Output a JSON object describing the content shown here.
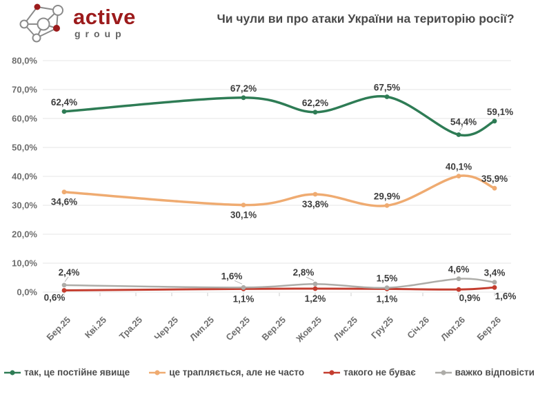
{
  "header": {
    "logo": {
      "brand": "active",
      "sub": "group"
    },
    "title": "Чи чули ви про атаки України на територію росії?"
  },
  "chart_data": {
    "type": "line",
    "title": "Чи чули ви про атаки України на територію росії?",
    "categories": [
      "Бер.25",
      "Кві.25",
      "Тра.25",
      "Чер.25",
      "Лип.25",
      "Сер.25",
      "Вер.25",
      "Жов.25",
      "Лис.25",
      "Гру.25",
      "Січ.26",
      "Лют.26",
      "Бер.26"
    ],
    "wave_indices": [
      0,
      5,
      7,
      9,
      11,
      12
    ],
    "series": [
      {
        "name": "так, це постійне явище",
        "color": "#2e7c55",
        "values": [
          62.4,
          67.2,
          62.2,
          67.5,
          54.4,
          59.1
        ],
        "label_sides": [
          "above",
          "above",
          "above",
          "above",
          "above-lead",
          "above-r"
        ]
      },
      {
        "name": "це трапляється, але не часто",
        "color": "#efab71",
        "values": [
          34.6,
          30.1,
          33.8,
          29.9,
          40.1,
          35.9
        ],
        "label_sides": [
          "below",
          "below",
          "below",
          "above",
          "above",
          "above"
        ]
      },
      {
        "name": "такого не буває",
        "color": "#c43d2f",
        "values": [
          0.6,
          1.1,
          1.2,
          1.1,
          0.9,
          1.6
        ],
        "label_sides": [
          "below-l",
          "below",
          "below",
          "below",
          "below-r",
          "below-r"
        ]
      },
      {
        "name": "важко відповісти",
        "color": "#adaca8",
        "values": [
          2.4,
          1.6,
          2.8,
          1.5,
          4.6,
          3.4
        ],
        "label_sides": [
          "above-lead",
          "above-lead-l",
          "above-lead-l",
          "above",
          "above",
          "above"
        ]
      }
    ],
    "ylim": [
      0,
      80
    ],
    "ytick_step": 10,
    "decimal_separator": ",",
    "unit": "%",
    "grid": true,
    "legend_position": "bottom",
    "colors": {
      "grid": "#e9e9e9",
      "axis_labels": "#6e6e6e",
      "data_labels": "#3d3d3d",
      "tick": "#cccccc",
      "leader": "#b5b5b5"
    }
  }
}
